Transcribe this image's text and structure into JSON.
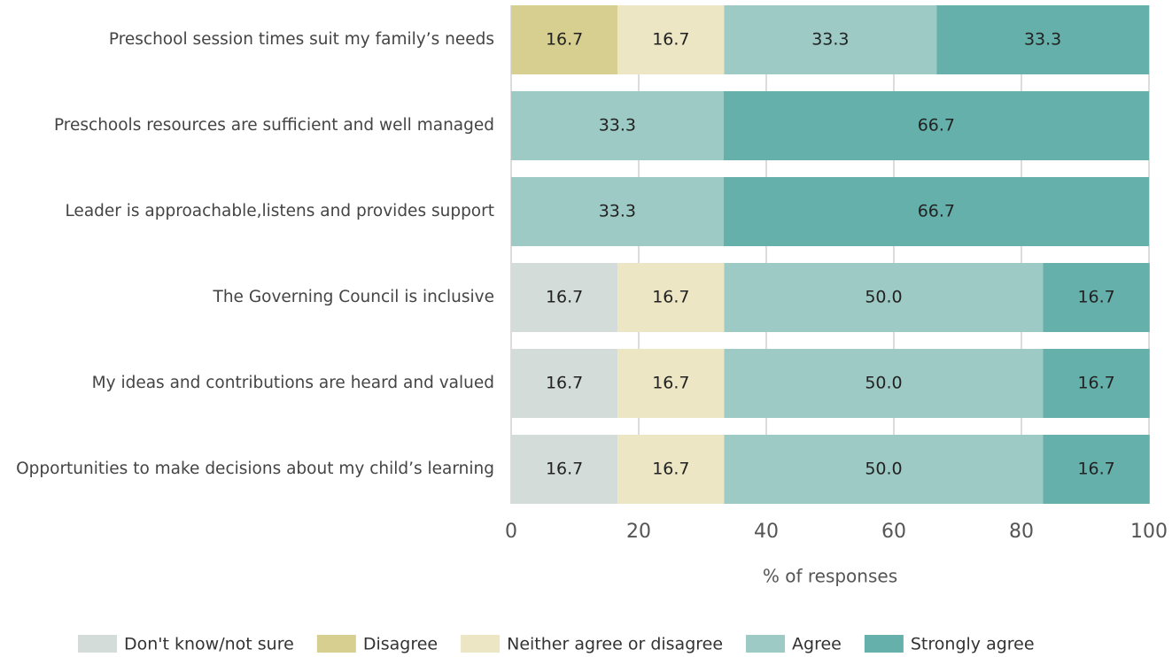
{
  "chart_data": {
    "type": "stacked-barh",
    "categories": [
      "Preschool session times suit my family’s needs",
      "Preschools resources are sufficient and well managed",
      "Leader is approachable,listens and provides support",
      "The Governing Council is inclusive",
      "My ideas and contributions are heard and valued",
      "Opportunities to make decisions about my child’s learning"
    ],
    "series": [
      {
        "name": "Don't know/not sure",
        "color": "#d3dcd8",
        "values": [
          null,
          null,
          null,
          16.7,
          16.7,
          16.7
        ],
        "value_labels": [
          null,
          null,
          null,
          "16.7",
          "16.7",
          "16.7"
        ]
      },
      {
        "name": "Disagree",
        "color": "#d6cf8f",
        "values": [
          16.7,
          null,
          null,
          null,
          null,
          null
        ],
        "value_labels": [
          "16.7",
          null,
          null,
          null,
          null,
          null
        ]
      },
      {
        "name": "Neither agree or disagree",
        "color": "#ece6c4",
        "values": [
          16.7,
          null,
          null,
          16.7,
          16.7,
          16.7
        ],
        "value_labels": [
          "16.7",
          null,
          null,
          "16.7",
          "16.7",
          "16.7"
        ]
      },
      {
        "name": "Agree",
        "color": "#9dcac4",
        "values": [
          33.3,
          33.3,
          33.3,
          50.0,
          50.0,
          50.0
        ],
        "value_labels": [
          "33.3",
          "33.3",
          "33.3",
          "50.0",
          "50.0",
          "50.0"
        ]
      },
      {
        "name": "Strongly agree",
        "color": "#65b0aa",
        "values": [
          33.3,
          66.7,
          66.7,
          16.7,
          16.7,
          16.7
        ],
        "value_labels": [
          "33.3",
          "66.7",
          "66.7",
          "16.7",
          "16.7",
          "16.7"
        ]
      }
    ],
    "xlabel": "% of responses",
    "xlim": [
      0,
      100
    ],
    "xticks": [
      0,
      20,
      40,
      60,
      80,
      100
    ],
    "grid": true,
    "legend": "bottom"
  }
}
